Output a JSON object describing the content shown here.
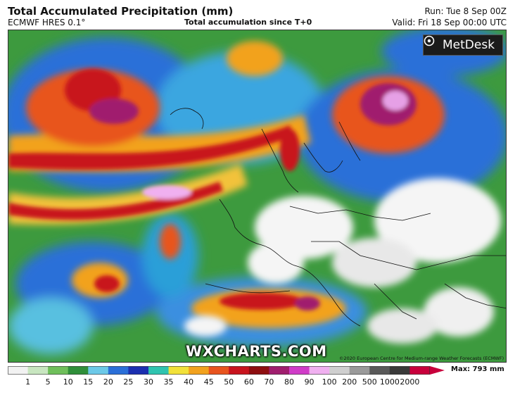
{
  "header": {
    "title": "Total Accumulated Precipitation (mm)",
    "model": "ECMWF HRES 0.1°",
    "subtitle": "Total accumulation since T+0",
    "run": "Run: Tue 8 Sep 00Z",
    "valid": "Valid: Fri 18 Sep 00:00 UTC"
  },
  "brand": {
    "name": "MetDesk"
  },
  "watermark": "WXCHARTS.COM",
  "credit": "©2020 European Centre for Medium-range Weather Forecasts (ECMWF)",
  "legend": {
    "max_label": "Max: 793 mm",
    "ticks": [
      "1",
      "5",
      "10",
      "15",
      "20",
      "25",
      "30",
      "35",
      "40",
      "45",
      "50",
      "60",
      "70",
      "80",
      "90",
      "100",
      "200",
      "500",
      "1000",
      "2000"
    ],
    "colors": [
      "#f2f2f2",
      "#c8e6c0",
      "#6fbf5b",
      "#2f8f3a",
      "#6cc9e8",
      "#2a6fd8",
      "#1b2fb0",
      "#2fc4b0",
      "#f2e13a",
      "#f2a21e",
      "#e8541e",
      "#c8141e",
      "#8e0e10",
      "#a01e6e",
      "#d03cc8",
      "#f0b0f0",
      "#cfcfcf",
      "#9a9a9a",
      "#5a5a5a",
      "#3a3a3a",
      "#c8003c"
    ],
    "water_color": "#2f8f3a",
    "dry_color": "#f5f5f5"
  }
}
